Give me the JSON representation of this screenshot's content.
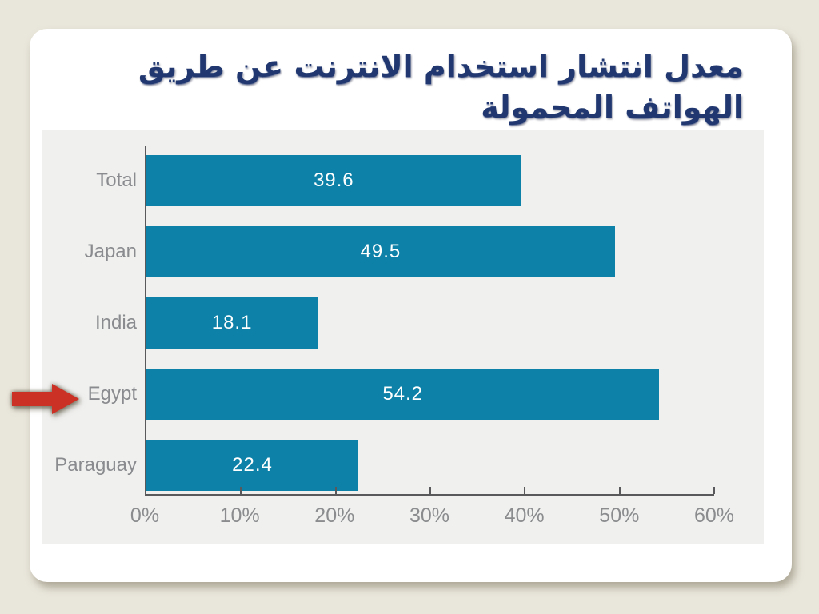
{
  "page": {
    "background": "#E9E6DB",
    "card_background": "#FFFFFF"
  },
  "title": {
    "line1": "معدل انتشار استخدام الانترنت عن طريق",
    "line2": "الهواتف المحمولة",
    "color": "#20386F"
  },
  "chart_data": {
    "type": "bar",
    "orientation": "horizontal",
    "title": "",
    "categories": [
      "Total",
      "Japan",
      "India",
      "Egypt",
      "Paraguay"
    ],
    "values": [
      39.6,
      49.5,
      18.1,
      54.2,
      22.4
    ],
    "value_labels": [
      "39.6",
      "49.5",
      "18.1",
      "54.2",
      "22.4"
    ],
    "xlabel": "",
    "ylabel": "",
    "xlim": [
      0,
      60
    ],
    "x_tick_labels": [
      "0%",
      "10%",
      "20%",
      "30%",
      "40%",
      "50%",
      "60%"
    ],
    "grid": false,
    "legend": false,
    "value_labels_position": "center-inside",
    "bar_color": "#0E81A8",
    "plot_background": "#F0F0EF",
    "axis_color": "#59595B",
    "category_label_color": "#898B8E",
    "tick_label_color": "#8A8C8E",
    "value_label_color": "#FDFEFE",
    "annotation": {
      "type": "red-arrow",
      "target_category": "Egypt",
      "color": "#CC3126"
    }
  }
}
